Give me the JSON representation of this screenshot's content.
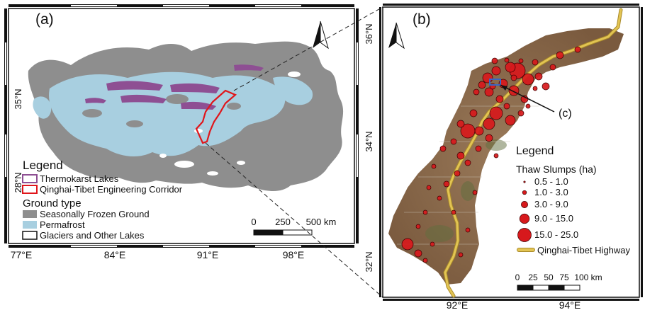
{
  "panel_a": {
    "label": "(a)",
    "lon_ticks": [
      "77°E",
      "84°E",
      "91°E",
      "98°E"
    ],
    "lat_ticks": [
      "35°N",
      "28°N"
    ],
    "legend": {
      "title": "Legend",
      "items": [
        {
          "label": "Thermokarst Lakes",
          "color": "#8e4f93"
        },
        {
          "label": "Qinghai-Tibet Engineering Corridor",
          "color": "#e0161b"
        }
      ],
      "ground_title": "Ground type",
      "ground_items": [
        {
          "label": "Seasonally Frozen Ground",
          "color": "#8e8e8e"
        },
        {
          "label": "Permafrost",
          "color": "#a8cfe0"
        },
        {
          "label": "Glaciers and Other Lakes",
          "color": "#ffffff"
        }
      ]
    },
    "scale": {
      "ticks": [
        "0",
        "250",
        "500 km"
      ]
    }
  },
  "panel_b": {
    "label": "(b)",
    "callout": "(c)",
    "lon_ticks": [
      "92°E",
      "94°E"
    ],
    "lat_ticks": [
      "36°N",
      "34°N",
      "32°N"
    ],
    "legend": {
      "title": "Legend",
      "subtitle": "Thaw Slumps (ha)",
      "classes": [
        "0.5 - 1.0",
        "1.0 - 3.0",
        "3.0 - 9.0",
        "9.0 - 15.0",
        "15.0 - 25.0"
      ],
      "highway": "Qinghai-Tibet Highway",
      "slump_color": "#d7191c",
      "highway_color": "#e2c453"
    },
    "scale": {
      "ticks": [
        "0",
        "25",
        "50",
        "75",
        "100 km"
      ]
    }
  }
}
